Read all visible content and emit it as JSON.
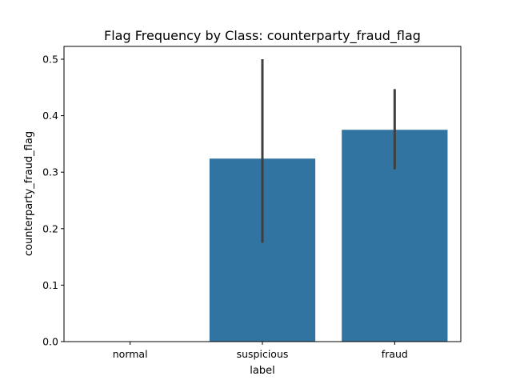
{
  "chart_data": {
    "type": "bar",
    "title": "Flag Frequency by Class: counterparty_fraud_flag",
    "xlabel": "label",
    "ylabel": "counterparty_fraud_flag",
    "categories": [
      "normal",
      "suspicious",
      "fraud"
    ],
    "values": [
      0.0,
      0.324,
      0.375
    ],
    "error_bars": [
      {
        "low": 0.0,
        "high": 0.0
      },
      {
        "low": 0.175,
        "high": 0.5
      },
      {
        "low": 0.305,
        "high": 0.447
      }
    ],
    "ylim": [
      0,
      0.5
    ],
    "yticks": [
      "0.0",
      "0.1",
      "0.2",
      "0.3",
      "0.4",
      "0.5"
    ],
    "grid": false,
    "colors": {
      "bar": "#3274a1",
      "error_bar": "#3f3f3f",
      "axis": "#000000"
    }
  }
}
